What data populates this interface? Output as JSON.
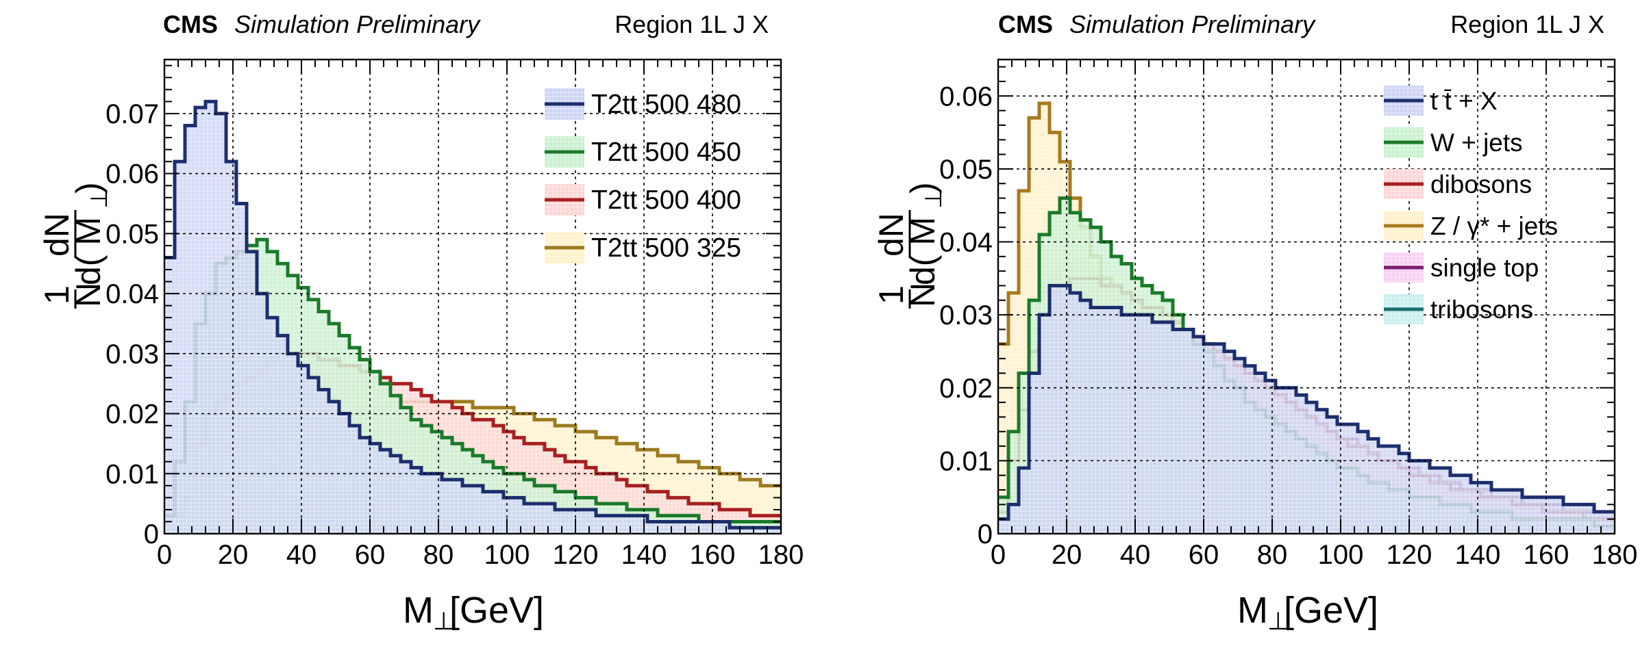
{
  "panels": {
    "left": {
      "cms_label": "CMS",
      "status_label": "Simulation Preliminary",
      "region_label": "Region 1L J X",
      "xlabel_main": "M",
      "xlabel_sub": "⊥",
      "xlabel_unit": "[GeV]",
      "ylabel_num_top": "1",
      "ylabel_den_bottom": "N",
      "ylabel_num": "dN",
      "ylabel_den": "d( M",
      "ylabel_den_sub": "⊥",
      "ylabel_den_close": ")"
    },
    "right": {
      "cms_label": "CMS",
      "status_label": "Simulation Preliminary",
      "region_label": "Region 1L J X",
      "xlabel_main": "M",
      "xlabel_sub": "⊥",
      "xlabel_unit": "[GeV]",
      "ylabel_num_top": "1",
      "ylabel_den_bottom": "N",
      "ylabel_num": "dN",
      "ylabel_den": "d( M",
      "ylabel_den_sub": "⊥",
      "ylabel_den_close": ")"
    }
  },
  "chart_data": [
    {
      "type": "histogram",
      "title": "CMS Simulation Preliminary — Region 1L J X",
      "xlabel": "M⊥[GeV]",
      "ylabel": "1/N dN/d(M⊥)",
      "xlim": [
        0,
        180
      ],
      "ylim": [
        0,
        0.079
      ],
      "xticks": [
        0,
        20,
        40,
        60,
        80,
        100,
        120,
        140,
        160,
        180
      ],
      "yticks": [
        0,
        0.01,
        0.02,
        0.03,
        0.04,
        0.05,
        0.06,
        0.07
      ],
      "ytick_labels": [
        "0",
        "0.01",
        "0.02",
        "0.03",
        "0.04",
        "0.05",
        "0.06",
        "0.07"
      ],
      "bin_width": 3,
      "bin_start": 0,
      "grid": true,
      "legend_position": "top-right",
      "series": [
        {
          "name": "T2tt 500 325",
          "color": "#9c7a1e",
          "fill": "#fff1c9",
          "values": [
            0.003,
            0.003,
            0.005,
            0.009,
            0.011,
            0.013,
            0.015,
            0.016,
            0.017,
            0.018,
            0.018,
            0.019,
            0.019,
            0.019,
            0.019,
            0.019,
            0.02,
            0.02,
            0.02,
            0.021,
            0.021,
            0.021,
            0.022,
            0.022,
            0.022,
            0.022,
            0.022,
            0.022,
            0.022,
            0.022,
            0.021,
            0.021,
            0.021,
            0.021,
            0.02,
            0.02,
            0.019,
            0.019,
            0.018,
            0.018,
            0.017,
            0.017,
            0.016,
            0.016,
            0.015,
            0.015,
            0.014,
            0.014,
            0.013,
            0.013,
            0.012,
            0.012,
            0.011,
            0.011,
            0.01,
            0.01,
            0.009,
            0.009,
            0.008,
            0.008
          ]
        },
        {
          "name": "T2tt 500 400",
          "color": "#a8201f",
          "fill": "#fdd5d5",
          "values": [
            0.003,
            0.003,
            0.006,
            0.015,
            0.02,
            0.022,
            0.023,
            0.025,
            0.026,
            0.027,
            0.029,
            0.03,
            0.03,
            0.03,
            0.03,
            0.029,
            0.029,
            0.028,
            0.028,
            0.027,
            0.027,
            0.026,
            0.025,
            0.025,
            0.024,
            0.023,
            0.022,
            0.022,
            0.021,
            0.02,
            0.019,
            0.019,
            0.018,
            0.017,
            0.016,
            0.015,
            0.015,
            0.014,
            0.013,
            0.012,
            0.012,
            0.011,
            0.01,
            0.01,
            0.009,
            0.008,
            0.008,
            0.007,
            0.007,
            0.006,
            0.006,
            0.005,
            0.005,
            0.005,
            0.004,
            0.004,
            0.004,
            0.003,
            0.003,
            0.003
          ]
        },
        {
          "name": "T2tt 500 450",
          "color": "#1b7a2a",
          "fill": "#c8f0cf",
          "values": [
            0.003,
            0.012,
            0.022,
            0.035,
            0.04,
            0.045,
            0.046,
            0.047,
            0.048,
            0.049,
            0.047,
            0.045,
            0.043,
            0.041,
            0.039,
            0.037,
            0.035,
            0.033,
            0.031,
            0.029,
            0.027,
            0.025,
            0.023,
            0.021,
            0.019,
            0.018,
            0.017,
            0.016,
            0.015,
            0.014,
            0.013,
            0.012,
            0.011,
            0.01,
            0.01,
            0.009,
            0.008,
            0.008,
            0.007,
            0.007,
            0.006,
            0.006,
            0.005,
            0.005,
            0.005,
            0.004,
            0.004,
            0.004,
            0.003,
            0.003,
            0.003,
            0.003,
            0.002,
            0.002,
            0.002,
            0.002,
            0.002,
            0.002,
            0.002,
            0.002
          ]
        },
        {
          "name": "T2tt 500 480",
          "color": "#1d2e6e",
          "fill": "#cdd4f3",
          "values": [
            0.046,
            0.062,
            0.068,
            0.071,
            0.072,
            0.07,
            0.062,
            0.055,
            0.047,
            0.04,
            0.036,
            0.033,
            0.03,
            0.028,
            0.026,
            0.024,
            0.022,
            0.02,
            0.018,
            0.016,
            0.015,
            0.014,
            0.013,
            0.012,
            0.011,
            0.01,
            0.01,
            0.009,
            0.009,
            0.008,
            0.008,
            0.007,
            0.007,
            0.006,
            0.006,
            0.005,
            0.005,
            0.005,
            0.004,
            0.004,
            0.004,
            0.004,
            0.003,
            0.003,
            0.003,
            0.003,
            0.003,
            0.002,
            0.002,
            0.002,
            0.002,
            0.002,
            0.002,
            0.002,
            0.002,
            0.001,
            0.001,
            0.001,
            0.001,
            0.001
          ]
        }
      ],
      "legend_order": [
        "T2tt 500 480",
        "T2tt 500 450",
        "T2tt 500 400",
        "T2tt 500 325"
      ]
    },
    {
      "type": "histogram",
      "title": "CMS Simulation Preliminary — Region 1L J X",
      "xlabel": "M⊥[GeV]",
      "ylabel": "1/N dN/d(M⊥)",
      "xlim": [
        0,
        180
      ],
      "ylim": [
        0,
        0.065
      ],
      "xticks": [
        0,
        20,
        40,
        60,
        80,
        100,
        120,
        140,
        160,
        180
      ],
      "yticks": [
        0,
        0.01,
        0.02,
        0.03,
        0.04,
        0.05,
        0.06
      ],
      "ytick_labels": [
        "0",
        "0.01",
        "0.02",
        "0.03",
        "0.04",
        "0.05",
        "0.06"
      ],
      "bin_width": 3,
      "bin_start": 0,
      "grid": true,
      "legend_position": "top-right",
      "series": [
        {
          "name": "tribosons",
          "color": "#1d6e6e",
          "fill": "#c8eeee",
          "values": [
            0.003,
            0.01,
            0.018,
            0.026,
            0.032,
            0.035,
            0.036,
            0.037,
            0.037,
            0.036,
            0.035,
            0.034,
            0.033,
            0.032,
            0.031,
            0.03,
            0.029,
            0.028,
            0.027,
            0.026,
            0.025,
            0.024,
            0.023,
            0.022,
            0.021,
            0.02,
            0.019,
            0.018,
            0.017,
            0.016,
            0.015,
            0.014,
            0.013,
            0.012,
            0.011,
            0.011,
            0.01,
            0.009,
            0.009,
            0.008,
            0.008,
            0.007,
            0.007,
            0.006,
            0.006,
            0.005,
            0.005,
            0.005,
            0.004,
            0.004,
            0.004,
            0.003,
            0.003,
            0.003,
            0.003,
            0.002,
            0.002,
            0.002,
            0.002,
            0.002
          ]
        },
        {
          "name": "single top",
          "color": "#7a1e6e",
          "fill": "#f5d0f0",
          "values": [
            0.003,
            0.01,
            0.02,
            0.028,
            0.033,
            0.035,
            0.036,
            0.036,
            0.036,
            0.035,
            0.035,
            0.034,
            0.033,
            0.032,
            0.031,
            0.031,
            0.03,
            0.029,
            0.028,
            0.027,
            0.026,
            0.025,
            0.024,
            0.023,
            0.022,
            0.021,
            0.02,
            0.019,
            0.018,
            0.017,
            0.016,
            0.015,
            0.014,
            0.013,
            0.013,
            0.012,
            0.011,
            0.01,
            0.01,
            0.009,
            0.009,
            0.008,
            0.008,
            0.007,
            0.007,
            0.006,
            0.006,
            0.006,
            0.005,
            0.005,
            0.005,
            0.004,
            0.004,
            0.004,
            0.004,
            0.003,
            0.003,
            0.003,
            0.003,
            0.003
          ]
        },
        {
          "name": "Z / γ* + jets",
          "color": "#a87a1e",
          "fill": "#fff0c9",
          "values": [
            0.026,
            0.033,
            0.047,
            0.057,
            0.059,
            0.055,
            0.051,
            0.046,
            0.042,
            0.038,
            0.035,
            0.032,
            0.029,
            0.027,
            0.025,
            0.023,
            0.021,
            0.02,
            0.018,
            0.017,
            0.016,
            0.015,
            0.014,
            0.013,
            0.012,
            0.011,
            0.01,
            0.01,
            0.009,
            0.008,
            0.008,
            0.007,
            0.007,
            0.006,
            0.006,
            0.005,
            0.005,
            0.005,
            0.004,
            0.004,
            0.004,
            0.003,
            0.003,
            0.003,
            0.003,
            0.003,
            0.002,
            0.002,
            0.002,
            0.002,
            0.002,
            0.002,
            0.002,
            0.002,
            0.002,
            0.001,
            0.001,
            0.001,
            0.001,
            0.001
          ]
        },
        {
          "name": "dibosons",
          "color": "#a8201f",
          "fill": "#fdd5d5",
          "values": [
            0.003,
            0.01,
            0.017,
            0.025,
            0.03,
            0.033,
            0.034,
            0.035,
            0.035,
            0.035,
            0.034,
            0.034,
            0.033,
            0.032,
            0.031,
            0.031,
            0.03,
            0.029,
            0.028,
            0.027,
            0.026,
            0.025,
            0.024,
            0.023,
            0.022,
            0.021,
            0.02,
            0.019,
            0.018,
            0.017,
            0.016,
            0.015,
            0.014,
            0.013,
            0.012,
            0.012,
            0.011,
            0.01,
            0.01,
            0.009,
            0.008,
            0.008,
            0.007,
            0.007,
            0.006,
            0.006,
            0.006,
            0.005,
            0.005,
            0.005,
            0.004,
            0.004,
            0.004,
            0.003,
            0.003,
            0.003,
            0.003,
            0.002,
            0.002,
            0.002
          ]
        },
        {
          "name": "W + jets",
          "color": "#1b7a2a",
          "fill": "#c8f0cf",
          "values": [
            0.005,
            0.014,
            0.022,
            0.032,
            0.041,
            0.044,
            0.046,
            0.044,
            0.043,
            0.042,
            0.04,
            0.038,
            0.037,
            0.035,
            0.034,
            0.033,
            0.032,
            0.03,
            0.028,
            0.026,
            0.025,
            0.023,
            0.021,
            0.02,
            0.018,
            0.017,
            0.016,
            0.015,
            0.014,
            0.013,
            0.012,
            0.011,
            0.01,
            0.009,
            0.009,
            0.008,
            0.007,
            0.007,
            0.006,
            0.006,
            0.005,
            0.005,
            0.005,
            0.004,
            0.004,
            0.004,
            0.003,
            0.003,
            0.003,
            0.003,
            0.002,
            0.002,
            0.002,
            0.002,
            0.002,
            0.002,
            0.002,
            0.002,
            0.001,
            0.001
          ]
        },
        {
          "name": "t t̄ + X",
          "color": "#1d2e6e",
          "fill": "#cdd4f3",
          "values": [
            0.002,
            0.004,
            0.009,
            0.022,
            0.03,
            0.034,
            0.034,
            0.033,
            0.032,
            0.031,
            0.031,
            0.031,
            0.03,
            0.03,
            0.03,
            0.029,
            0.029,
            0.028,
            0.028,
            0.027,
            0.026,
            0.026,
            0.025,
            0.024,
            0.023,
            0.022,
            0.021,
            0.02,
            0.02,
            0.019,
            0.018,
            0.017,
            0.016,
            0.015,
            0.015,
            0.014,
            0.013,
            0.012,
            0.012,
            0.011,
            0.01,
            0.01,
            0.009,
            0.009,
            0.008,
            0.008,
            0.007,
            0.007,
            0.006,
            0.006,
            0.006,
            0.005,
            0.005,
            0.005,
            0.005,
            0.004,
            0.004,
            0.004,
            0.003,
            0.003
          ]
        }
      ],
      "legend_order": [
        "t t̄ + X",
        "W + jets",
        "dibosons",
        "Z / γ* + jets",
        "single top",
        "tribosons"
      ]
    }
  ]
}
